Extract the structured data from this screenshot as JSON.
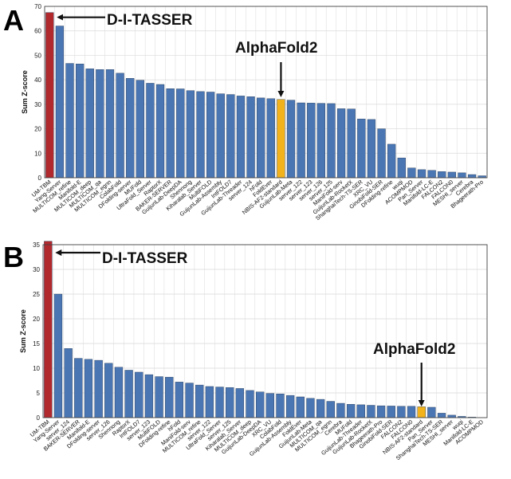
{
  "figure": {
    "colors": {
      "bar": "#4a76b4",
      "highlight_top": "#b1282d",
      "highlight_af2": "#f2b21b",
      "grid": "#d9d9d9",
      "frame": "#444444"
    }
  },
  "chart_data": [
    {
      "panel_label": "A",
      "type": "bar",
      "ylabel": "Sum Z-score",
      "ylim": [
        0,
        70
      ],
      "yticks": [
        0,
        10,
        20,
        30,
        40,
        50,
        60,
        70
      ],
      "grid": true,
      "annotations": [
        {
          "text": "D-I-TASSER",
          "target": "UM-TBM",
          "arrow": "left"
        },
        {
          "text": "AlphaFold2",
          "target": "NBIS-AF2-standard",
          "arrow": "down"
        }
      ],
      "highlight": {
        "UM-TBM": "highlight_top",
        "NBIS-AF2-standard": "highlight_af2"
      },
      "categories": [
        "UM-TBM",
        "Yang-Server",
        "MULTICOM_refine",
        "Manifold-E",
        "MULTICOM_deep",
        "MULTICOM_qa",
        "MULTICOM_egnn",
        "ColabFold",
        "DFolding-server",
        "MUFold",
        "UltraFold_Server",
        "RaptorX",
        "BAKER-SERVER",
        "GuijunLab-DeepDA",
        "Shennong",
        "Kiharalab_Server",
        "MultiFOLD",
        "GuijunLab-Assembly",
        "IntFOLD7",
        "GuijunLab-Threader",
        "server_124",
        "hFold",
        "FoldEver",
        "NBIS-AF2-standard",
        "GuijunLab-Meta",
        "server_122",
        "server_123",
        "server_126",
        "server_125",
        "ManiFold-serv",
        "GuijunLab-RocketX",
        "ShanghaiTech-TS-SER",
        "XRC_VU",
        "GinobiFold-SER",
        "DFolding-refine",
        "wuqi",
        "ACOMPMOD",
        "Pan_Server",
        "Manifold-LC-E",
        "FALCON2",
        "FALCON0",
        "MESHI_server",
        "Cerebra",
        "Bhageerath-Pro"
      ],
      "values": [
        67.5,
        62,
        46.7,
        46.5,
        44.5,
        44.2,
        44.2,
        42.7,
        40.6,
        39.8,
        38.6,
        38.1,
        36.4,
        36.3,
        35.6,
        35.2,
        35.0,
        34.3,
        34.0,
        33.4,
        33.1,
        32.6,
        32.3,
        32.0,
        31.7,
        30.6,
        30.5,
        30.4,
        30.3,
        28.2,
        28.1,
        24.0,
        23.8,
        20.0,
        13.7,
        8.1,
        4.0,
        3.3,
        3.0,
        2.5,
        2.3,
        2.0,
        1.3,
        0.8
      ]
    },
    {
      "panel_label": "B",
      "type": "bar",
      "ylabel": "Sum Z-score",
      "ylim": [
        0,
        35
      ],
      "yticks": [
        0,
        5,
        10,
        15,
        20,
        25,
        30,
        35
      ],
      "grid": true,
      "annotations": [
        {
          "text": "D-I-TASSER",
          "target": "UM-TBM",
          "arrow": "left"
        },
        {
          "text": "AlphaFold2",
          "target": "NBIS-AF2-standard",
          "arrow": "down"
        }
      ],
      "highlight": {
        "UM-TBM": "highlight_top",
        "NBIS-AF2-standard": "highlight_af2"
      },
      "categories": [
        "UM-TBM",
        "Yang-Server",
        "server_124",
        "BAKER-SERVER",
        "Manifold-E",
        "DFolding-server",
        "server_126",
        "Shennong",
        "RaptorX",
        "IntFOLD7",
        "server_123",
        "MultiFOLD",
        "DFolding-refine",
        "hFold",
        "ManiFold-serv",
        "MULTICOM_refine",
        "server_122",
        "UltraFold_Server",
        "server_125",
        "Kiharalab_Server",
        "MULTICOM_deep",
        "GuijunLab-DeepDA",
        "XRC_VU",
        "ColabFold",
        "GuijunLab-Assembly",
        "FoldEver",
        "GuijunLab-Meta",
        "MULTICOM_qa",
        "MULTICOM_egnn",
        "Cerebra",
        "MUFold",
        "GuijunLab-Threader",
        "GuijunLab-RocketX",
        "Bhageerath-Pro",
        "GinobiFold-SER",
        "FALCON2",
        "FALCON0",
        "NBIS-AF2-standard",
        "Pan_Server",
        "ShanghaiTech-TS-SER",
        "MESHI_server",
        "wuqi",
        "Manifold-LC-E",
        "ACOMPMOD"
      ],
      "values": [
        35.7,
        25.0,
        14.0,
        12.0,
        11.8,
        11.6,
        11.0,
        10.2,
        9.6,
        9.2,
        8.7,
        8.3,
        8.2,
        7.2,
        7.0,
        6.6,
        6.3,
        6.2,
        6.1,
        5.9,
        5.5,
        5.2,
        4.9,
        4.8,
        4.5,
        4.2,
        3.9,
        3.7,
        3.3,
        2.9,
        2.7,
        2.6,
        2.5,
        2.4,
        2.35,
        2.3,
        2.3,
        2.2,
        2.1,
        0.9,
        0.5,
        0.25,
        0.1,
        0.0
      ]
    }
  ]
}
